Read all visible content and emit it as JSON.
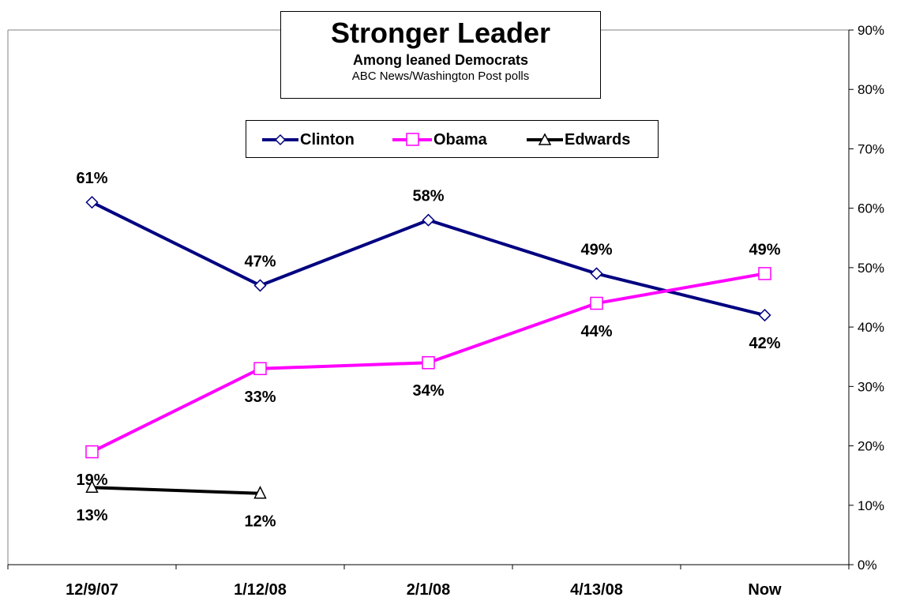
{
  "chart_data": {
    "type": "line",
    "title": "Stronger Leader",
    "subtitle": "Among leaned Democrats",
    "source": "ABC News/Washington Post polls",
    "categories": [
      "12/9/07",
      "1/12/08",
      "2/1/08",
      "4/13/08",
      "Now"
    ],
    "y_axis": {
      "position": "right",
      "ylim": [
        0,
        90
      ],
      "ticks": [
        "0%",
        "10%",
        "20%",
        "30%",
        "40%",
        "50%",
        "60%",
        "70%",
        "80%",
        "90%"
      ]
    },
    "grid": false,
    "legend": {
      "placement": "top-center"
    },
    "series": [
      {
        "name": "Clinton",
        "color": "#000080",
        "marker": "diamond",
        "values": [
          61,
          47,
          58,
          49,
          42
        ],
        "labels": [
          "61%",
          "47%",
          "58%",
          "49%",
          "42%"
        ]
      },
      {
        "name": "Obama",
        "color": "#FF00FF",
        "marker": "square",
        "values": [
          19,
          33,
          34,
          44,
          49
        ],
        "labels": [
          "19%",
          "33%",
          "34%",
          "44%",
          "49%"
        ]
      },
      {
        "name": "Edwards",
        "color": "#000000",
        "marker": "triangle",
        "values": [
          13,
          12,
          null,
          null,
          null
        ],
        "labels": [
          "13%",
          "12%",
          null,
          null,
          null
        ]
      }
    ]
  }
}
